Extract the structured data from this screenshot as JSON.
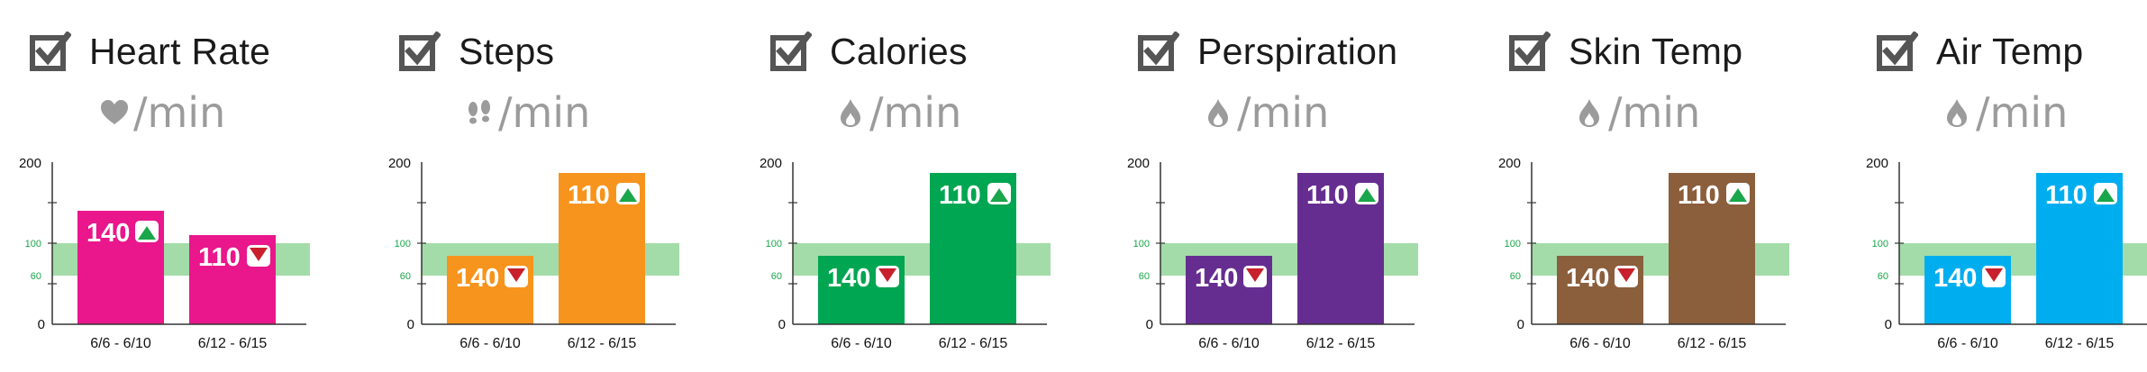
{
  "units_label": "/min",
  "colors": {
    "band": "#a3dca8",
    "axis": "#333333",
    "tick_label_green": "#1aa64a",
    "arrow_up": "#1aa64a",
    "arrow_down": "#c8202c"
  },
  "chart_data": [
    {
      "type": "bar",
      "title": "Heart Rate",
      "unit_icon": "heart-icon",
      "categories": [
        "6/6 - 6/10",
        "6/12 - 6/15"
      ],
      "values": [
        140,
        110
      ],
      "trends": [
        "up",
        "down"
      ],
      "color": "#e9168c",
      "ylim": [
        0,
        200
      ],
      "yticks": [
        "200",
        "0"
      ],
      "green_ticks": [
        "100",
        "60"
      ],
      "band": [
        60,
        100
      ],
      "bars_scale": "data"
    },
    {
      "type": "bar",
      "title": "Steps",
      "unit_icon": "footprints-icon",
      "categories": [
        "6/6 - 6/10",
        "6/12 - 6/15"
      ],
      "values": [
        140,
        110
      ],
      "trends": [
        "down",
        "up"
      ],
      "color": "#f7941d",
      "ylim": [
        0,
        200
      ],
      "yticks": [
        "200",
        "0"
      ],
      "green_ticks": [
        "100",
        "60"
      ],
      "band": [
        60,
        100
      ],
      "bars_scale": "illustrative"
    },
    {
      "type": "bar",
      "title": "Calories",
      "unit_icon": "flame-icon",
      "categories": [
        "6/6 - 6/10",
        "6/12 - 6/15"
      ],
      "values": [
        140,
        110
      ],
      "trends": [
        "down",
        "up"
      ],
      "color": "#00a651",
      "ylim": [
        0,
        200
      ],
      "yticks": [
        "200",
        "0"
      ],
      "green_ticks": [
        "100",
        "60"
      ],
      "band": [
        60,
        100
      ],
      "bars_scale": "illustrative"
    },
    {
      "type": "bar",
      "title": "Perspiration",
      "unit_icon": "drop-icon",
      "categories": [
        "6/6 - 6/10",
        "6/12 - 6/15"
      ],
      "values": [
        140,
        110
      ],
      "trends": [
        "down",
        "up"
      ],
      "color": "#662d91",
      "ylim": [
        0,
        200
      ],
      "yticks": [
        "200",
        "0"
      ],
      "green_ticks": [
        "100",
        "60"
      ],
      "band": [
        60,
        100
      ],
      "bars_scale": "illustrative"
    },
    {
      "type": "bar",
      "title": "Skin Temp",
      "unit_icon": "drop-icon",
      "categories": [
        "6/6 - 6/10",
        "6/12 - 6/15"
      ],
      "values": [
        140,
        110
      ],
      "trends": [
        "down",
        "up"
      ],
      "color": "#8b5e3c",
      "ylim": [
        0,
        200
      ],
      "yticks": [
        "200",
        "0"
      ],
      "green_ticks": [
        "100",
        "60"
      ],
      "band": [
        60,
        100
      ],
      "bars_scale": "illustrative"
    },
    {
      "type": "bar",
      "title": "Air Temp",
      "unit_icon": "drop-icon",
      "categories": [
        "6/6 - 6/10",
        "6/12 - 6/15"
      ],
      "values": [
        140,
        110
      ],
      "trends": [
        "down",
        "up"
      ],
      "color": "#00aeef",
      "ylim": [
        0,
        200
      ],
      "yticks": [
        "200",
        "0"
      ],
      "green_ticks": [
        "100",
        "60"
      ],
      "band": [
        60,
        100
      ],
      "bars_scale": "illustrative"
    }
  ]
}
